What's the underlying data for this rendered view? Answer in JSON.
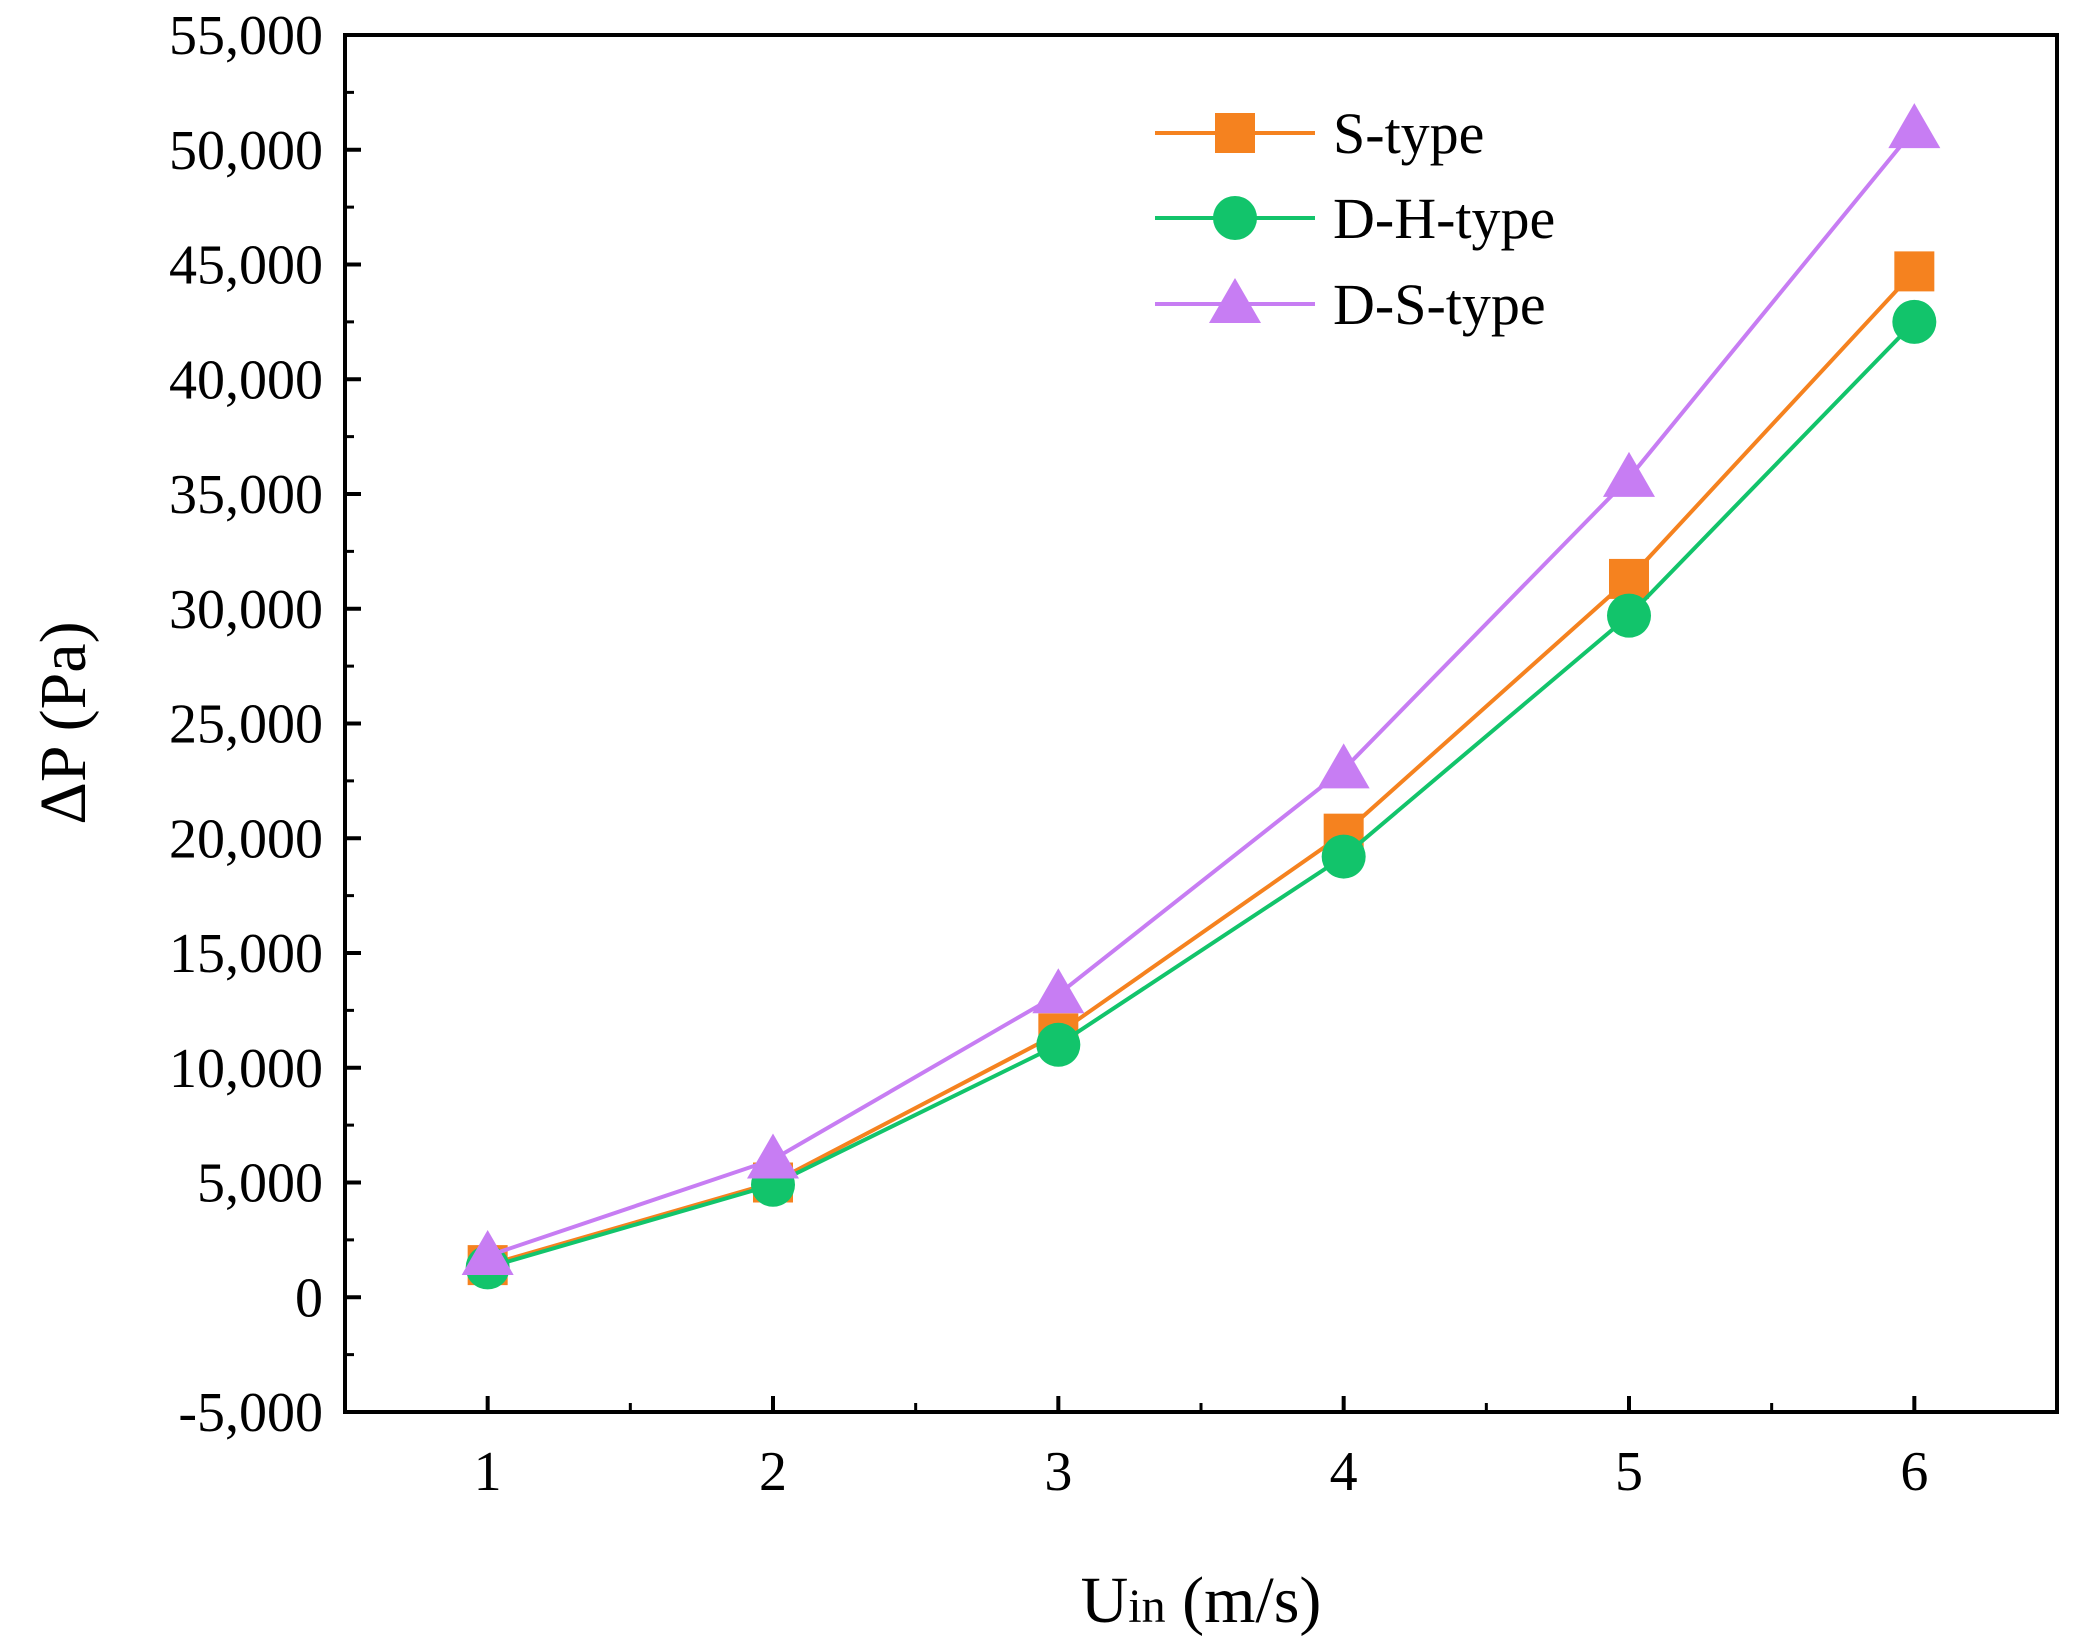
{
  "chart_data": {
    "type": "line",
    "title": "",
    "xlabel_main": "U",
    "xlabel_sub": "in",
    "xlabel_unit": " (m/s)",
    "ylabel": "ΔP (Pa)",
    "x": [
      1,
      2,
      3,
      4,
      5,
      6
    ],
    "xlim": [
      0.5,
      6.5
    ],
    "ylim": [
      -5000,
      55000
    ],
    "xticks": [
      1,
      2,
      3,
      4,
      5,
      6
    ],
    "xtick_labels": [
      "1",
      "2",
      "3",
      "4",
      "5",
      "6"
    ],
    "yticks": [
      -5000,
      0,
      5000,
      10000,
      15000,
      20000,
      25000,
      30000,
      35000,
      40000,
      45000,
      50000,
      55000
    ],
    "ytick_labels": [
      "-5,000",
      "0",
      "5,000",
      "10,000",
      "15,000",
      "20,000",
      "25,000",
      "30,000",
      "35,000",
      "40,000",
      "45,000",
      "50,000",
      "55,000"
    ],
    "grid": false,
    "legend_position": "top-right",
    "series": [
      {
        "name": "S-type",
        "marker": "square",
        "color": "#f5821f",
        "values": [
          1400,
          5000,
          11500,
          20200,
          31300,
          44700
        ]
      },
      {
        "name": "D-H-type",
        "marker": "circle",
        "color": "#12c46b",
        "values": [
          1300,
          4900,
          11000,
          19200,
          29700,
          42500
        ]
      },
      {
        "name": "D-S-type",
        "marker": "triangle",
        "color": "#c77df3",
        "values": [
          1800,
          6000,
          13200,
          23000,
          35700,
          50900
        ]
      }
    ]
  }
}
